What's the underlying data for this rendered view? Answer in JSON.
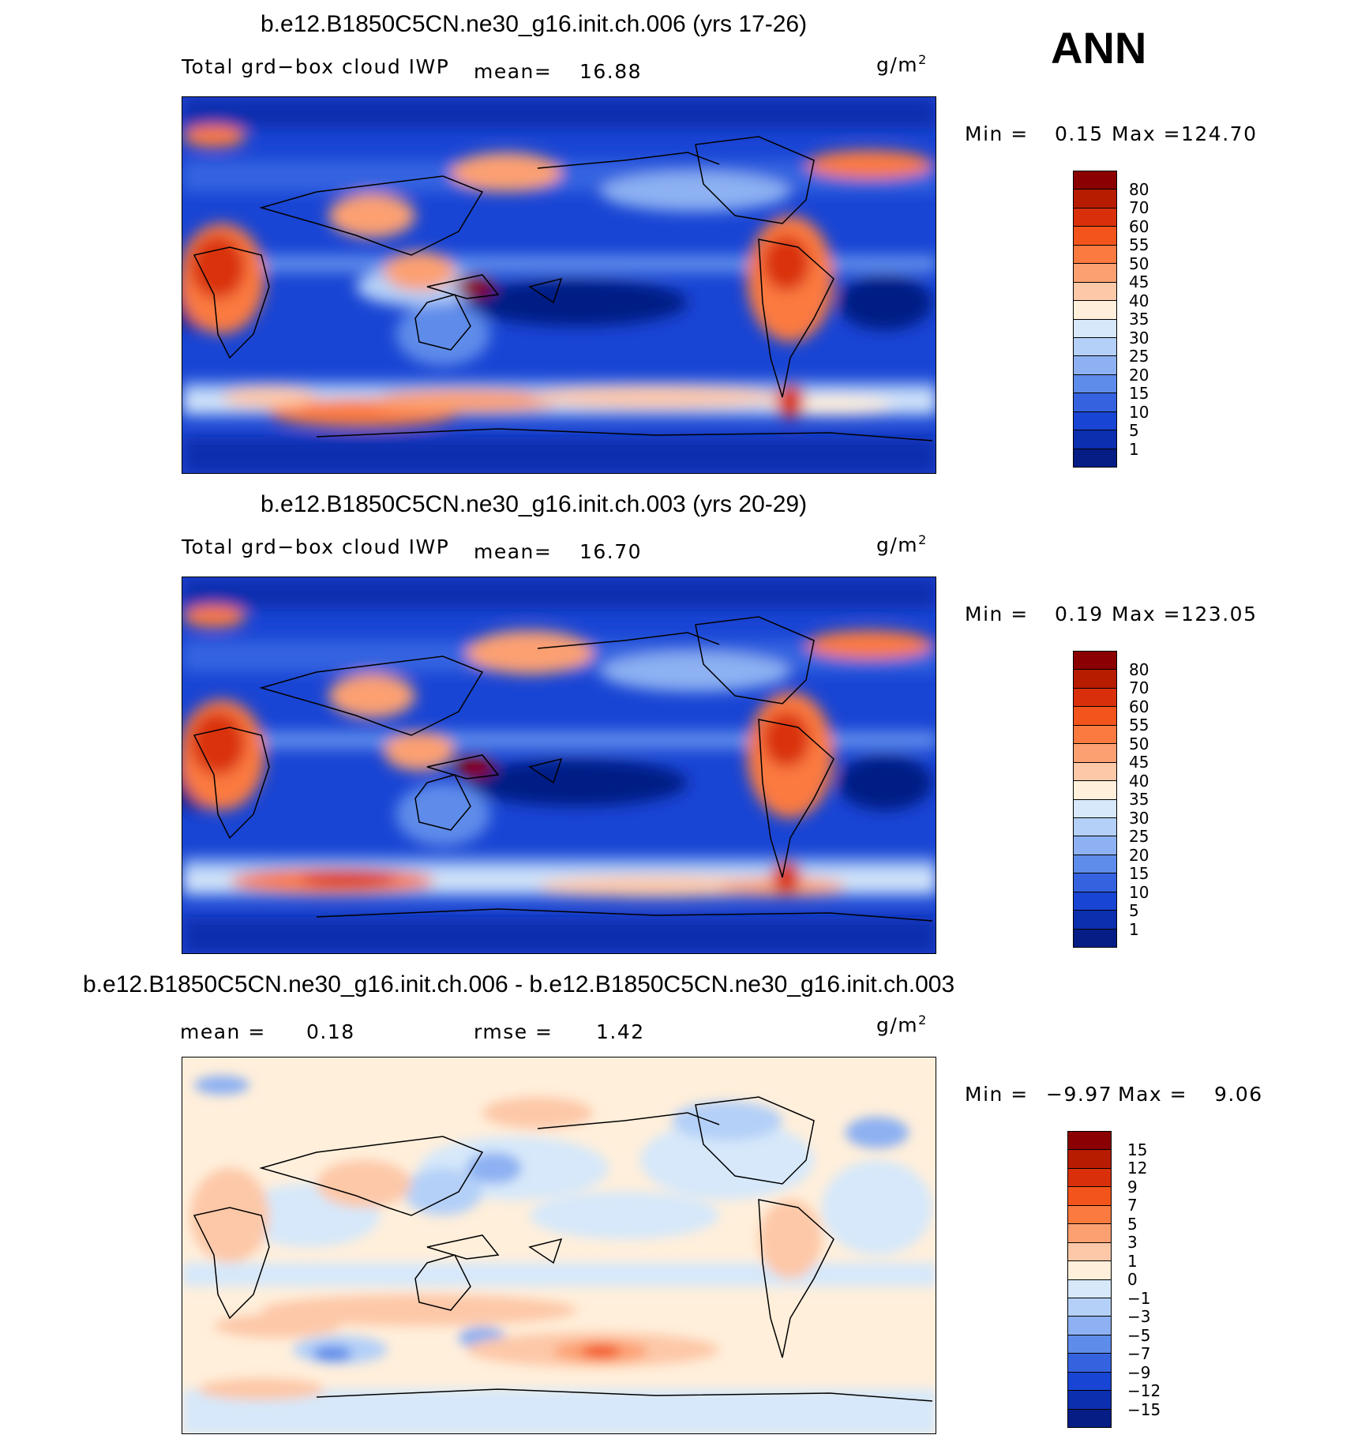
{
  "season": "ANN",
  "units": "g/m",
  "units_exp": "2",
  "panels": [
    {
      "title": "b.e12.B1850C5CN.ne30_g16.init.ch.006 (yrs 17-26)",
      "variable": "Total grd−box cloud IWP",
      "mean_label": "mean=",
      "mean_value": "16.88",
      "min_label": "Min =",
      "min_value": "0.15",
      "max_label": "Max =",
      "max_value": "124.70",
      "colorbar": {
        "labels": [
          "80",
          "70",
          "60",
          "55",
          "50",
          "45",
          "40",
          "35",
          "30",
          "25",
          "20",
          "15",
          "10",
          "5",
          "1"
        ],
        "colors": [
          "#8B0000",
          "#B71C00",
          "#D9300B",
          "#F2541B",
          "#FB7A40",
          "#FCA072",
          "#FDC8A8",
          "#FFEFDB",
          "#D6E8FA",
          "#B4D0F8",
          "#8DB1F2",
          "#5E8CEA",
          "#3563E0",
          "#1945D4",
          "#0B2FAF",
          "#051D85"
        ]
      }
    },
    {
      "title": "b.e12.B1850C5CN.ne30_g16.init.ch.003 (yrs 20-29)",
      "variable": "Total grd−box cloud IWP",
      "mean_label": "mean=",
      "mean_value": "16.70",
      "min_label": "Min =",
      "min_value": "0.19",
      "max_label": "Max =",
      "max_value": "123.05",
      "colorbar": {
        "labels": [
          "80",
          "70",
          "60",
          "55",
          "50",
          "45",
          "40",
          "35",
          "30",
          "25",
          "20",
          "15",
          "10",
          "5",
          "1"
        ],
        "colors": [
          "#8B0000",
          "#B71C00",
          "#D9300B",
          "#F2541B",
          "#FB7A40",
          "#FCA072",
          "#FDC8A8",
          "#FFEFDB",
          "#D6E8FA",
          "#B4D0F8",
          "#8DB1F2",
          "#5E8CEA",
          "#3563E0",
          "#1945D4",
          "#0B2FAF",
          "#051D85"
        ]
      }
    },
    {
      "title": "b.e12.B1850C5CN.ne30_g16.init.ch.006 - b.e12.B1850C5CN.ne30_g16.init.ch.003",
      "mean_label": "mean =",
      "mean_value": "0.18",
      "rmse_label": "rmse =",
      "rmse_value": "1.42",
      "min_label": "Min =",
      "min_value": "−9.97",
      "max_label": "Max =",
      "max_value": "9.06",
      "colorbar": {
        "labels": [
          "15",
          "12",
          "9",
          "7",
          "5",
          "3",
          "1",
          "0",
          "−1",
          "−3",
          "−5",
          "−7",
          "−9",
          "−12",
          "−15"
        ],
        "colors": [
          "#8B0000",
          "#B71C00",
          "#D9300B",
          "#F2541B",
          "#FB7A40",
          "#FCA072",
          "#FDC8A8",
          "#FFEFDB",
          "#D6E8FA",
          "#B4D0F8",
          "#8DB1F2",
          "#5E8CEA",
          "#3563E0",
          "#1945D4",
          "#0B2FAF",
          "#051D85"
        ]
      }
    }
  ]
}
